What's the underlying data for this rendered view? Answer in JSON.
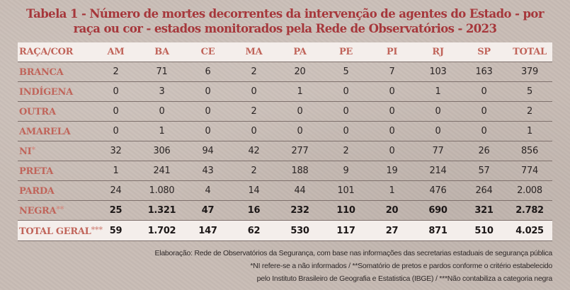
{
  "title": {
    "line1": "Tabela 1 - Número de mortes decorrentes da intervenção de agentes do Estado - por",
    "line2": "raça ou cor - estados monitorados pela Rede de Observatórios - 2023"
  },
  "table": {
    "headers": [
      "RAÇA/COR",
      "AM",
      "BA",
      "CE",
      "MA",
      "PA",
      "PE",
      "PI",
      "RJ",
      "SP",
      "TOTAL"
    ],
    "rows": [
      {
        "label": "BRANCA",
        "sup": "",
        "values": [
          "2",
          "71",
          "6",
          "2",
          "20",
          "5",
          "7",
          "103",
          "163",
          "379"
        ]
      },
      {
        "label": "INDÍGENA",
        "sup": "",
        "values": [
          "0",
          "3",
          "0",
          "0",
          "1",
          "0",
          "0",
          "1",
          "0",
          "5"
        ]
      },
      {
        "label": "OUTRA",
        "sup": "",
        "values": [
          "0",
          "0",
          "0",
          "2",
          "0",
          "0",
          "0",
          "0",
          "0",
          "2"
        ]
      },
      {
        "label": "AMARELA",
        "sup": "",
        "values": [
          "0",
          "1",
          "0",
          "0",
          "0",
          "0",
          "0",
          "0",
          "0",
          "1"
        ]
      },
      {
        "label": "NI",
        "sup": "*",
        "values": [
          "32",
          "306",
          "94",
          "42",
          "277",
          "2",
          "0",
          "77",
          "26",
          "856"
        ]
      },
      {
        "label": "PRETA",
        "sup": "",
        "values": [
          "1",
          "241",
          "43",
          "2",
          "188",
          "9",
          "19",
          "214",
          "57",
          "774"
        ]
      },
      {
        "label": "PARDA",
        "sup": "",
        "values": [
          "24",
          "1.080",
          "4",
          "14",
          "44",
          "101",
          "1",
          "476",
          "264",
          "2.008"
        ]
      },
      {
        "label": "NEGRA",
        "sup": "**",
        "values": [
          "25",
          "1.321",
          "47",
          "16",
          "232",
          "110",
          "20",
          "690",
          "321",
          "2.782"
        ]
      },
      {
        "label": "TOTAL GERAL",
        "sup": "***",
        "values": [
          "59",
          "1.702",
          "147",
          "62",
          "530",
          "117",
          "27",
          "871",
          "510",
          "4.025"
        ]
      }
    ]
  },
  "notes": {
    "line1": "Elaboração: Rede de Observatórios da Segurança, com base nas informações das secretarias estaduais de segurança pública",
    "line2": "*NI refere-se a não informados / **Somatório de pretos e pardos conforme o critério estabelecido",
    "line3": "pelo Instituto Brasileiro de Geografia e Estatistica (IBGE) /  ***Não contabiliza a categoria negra"
  },
  "colors": {
    "title": "#a6373b",
    "row_label": "#c0645a",
    "header_bg": "#f4eeeb",
    "page_bg": "#c8bcb5",
    "rule": "#7e706c"
  }
}
